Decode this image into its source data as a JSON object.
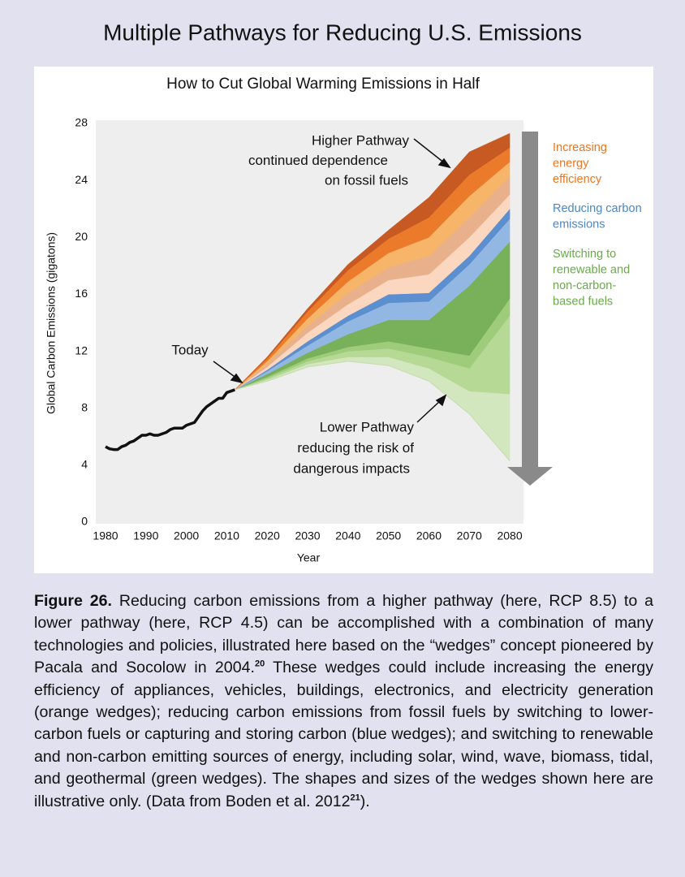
{
  "title": "Multiple Pathways for Reducing U.S. Emissions",
  "chart_data": {
    "type": "stacked-area",
    "title": "How to Cut Global Warming Emissions in Half",
    "x_label": "Year",
    "y_label": "Global Carbon Emissions (gigatons)",
    "xlim": [
      1977,
      2083
    ],
    "xticks": [
      1980,
      1990,
      2000,
      2010,
      2020,
      2030,
      2040,
      2050,
      2060,
      2070,
      2080
    ],
    "ylim": [
      0,
      28
    ],
    "yticks": [
      0,
      4,
      8,
      12,
      16,
      20,
      24,
      28
    ],
    "historical": {
      "color": "#111111",
      "x": [
        1980,
        1981,
        1982,
        1983,
        1984,
        1985,
        1986,
        1987,
        1988,
        1989,
        1990,
        1991,
        1992,
        1993,
        1994,
        1995,
        1996,
        1997,
        1998,
        1999,
        2000,
        2001,
        2002,
        2003,
        2004,
        2005,
        2006,
        2007,
        2008,
        2009,
        2010,
        2011,
        2012
      ],
      "values": [
        5.3,
        5.15,
        5.1,
        5.1,
        5.3,
        5.4,
        5.6,
        5.7,
        5.9,
        6.1,
        6.1,
        6.2,
        6.1,
        6.1,
        6.2,
        6.3,
        6.5,
        6.6,
        6.6,
        6.6,
        6.8,
        6.9,
        7.0,
        7.4,
        7.8,
        8.1,
        8.3,
        8.5,
        8.7,
        8.7,
        9.1,
        9.2,
        9.3
      ]
    },
    "x": [
      2012,
      2020,
      2030,
      2040,
      2050,
      2060,
      2070,
      2080
    ],
    "baseline": {
      "color": "#c4dcae",
      "values": [
        9.3,
        9.9,
        10.9,
        11.3,
        11.0,
        9.9,
        7.6,
        4.3
      ]
    },
    "series": [
      {
        "color": "#d3e7be",
        "values": [
          0,
          0.1,
          0.2,
          0.3,
          0.6,
          0.9,
          1.6,
          4.7
        ]
      },
      {
        "color": "#b6d996",
        "values": [
          0,
          0.1,
          0.2,
          0.4,
          0.6,
          0.8,
          1.6,
          5.5
        ]
      },
      {
        "color": "#9fcc7b",
        "values": [
          0,
          0.1,
          0.2,
          0.3,
          0.5,
          0.6,
          0.9,
          1.2
        ]
      },
      {
        "color": "#78b15a",
        "values": [
          0,
          0.2,
          0.4,
          0.9,
          1.5,
          2.0,
          4.9,
          4.0
        ]
      },
      {
        "color": "#93b7e3",
        "values": [
          0,
          0.2,
          0.5,
          0.9,
          1.2,
          1.3,
          1.5,
          1.6
        ]
      },
      {
        "color": "#5c8fd0",
        "values": [
          0,
          0.1,
          0.3,
          0.4,
          0.6,
          0.6,
          0.6,
          0.7
        ]
      },
      {
        "color": "#fbd7c0",
        "values": [
          0,
          0.2,
          0.6,
          0.8,
          1.0,
          1.3,
          1.3,
          1.0
        ]
      },
      {
        "color": "#e8b18c",
        "values": [
          0,
          0.2,
          0.5,
          0.8,
          0.9,
          1.3,
          1.4,
          1.3
        ]
      },
      {
        "color": "#f6b568",
        "values": [
          0,
          0.2,
          0.5,
          0.8,
          1.0,
          1.3,
          1.5,
          1.0
        ]
      },
      {
        "color": "#eb7b2b",
        "values": [
          0,
          0.2,
          0.5,
          0.8,
          1.0,
          1.4,
          1.5,
          1.0
        ]
      },
      {
        "color": "#c65a22",
        "values": [
          0,
          0.1,
          0.2,
          0.4,
          0.6,
          1.4,
          1.6,
          1.0
        ]
      }
    ],
    "wedge_groups": [
      {
        "color": "#e87722",
        "lines": [
          "Increasing",
          "energy",
          "efficiency"
        ]
      },
      {
        "color": "#4a86c8",
        "lines": [
          "Reducing carbon",
          "emissions"
        ]
      },
      {
        "color": "#6aaa4a",
        "lines": [
          "Switching to",
          "renewable and",
          "non-carbon-",
          "based fuels"
        ]
      }
    ],
    "annotations": [
      {
        "lines": [
          "Higher Pathway",
          "continued dependence",
          "on fossil fuels"
        ]
      },
      {
        "lines": [
          "Today"
        ]
      },
      {
        "lines": [
          "Lower Pathway",
          "reducing the risk of",
          "dangerous impacts"
        ]
      }
    ]
  },
  "caption": {
    "label": "Figure 26.",
    "parts": [
      "Reducing carbon emissions from a higher pathway (here, RCP 8.5) to a lower pathway (here, RCP 4.5) can be accomplished with a combination of many technologies and policies, illustrated here based on the “wedges” concept pioneered by Pacala and Socolow in 2004.",
      "20",
      " These wedges could include increasing the energy efficiency of appliances, vehicles, buildings, electronics, and electricity generation (orange wedges); reducing carbon emissions from fossil fuels by switching to lower-carbon fuels or capturing and storing carbon (blue wedges); and switching to renewable and non-carbon emitting sources of energy, including solar, wind, wave, biomass, tidal, and geothermal (green wedges). The shapes and sizes of the wedges shown here are illustrative only. (Data from Boden et al. 2012",
      "21",
      ")."
    ]
  }
}
